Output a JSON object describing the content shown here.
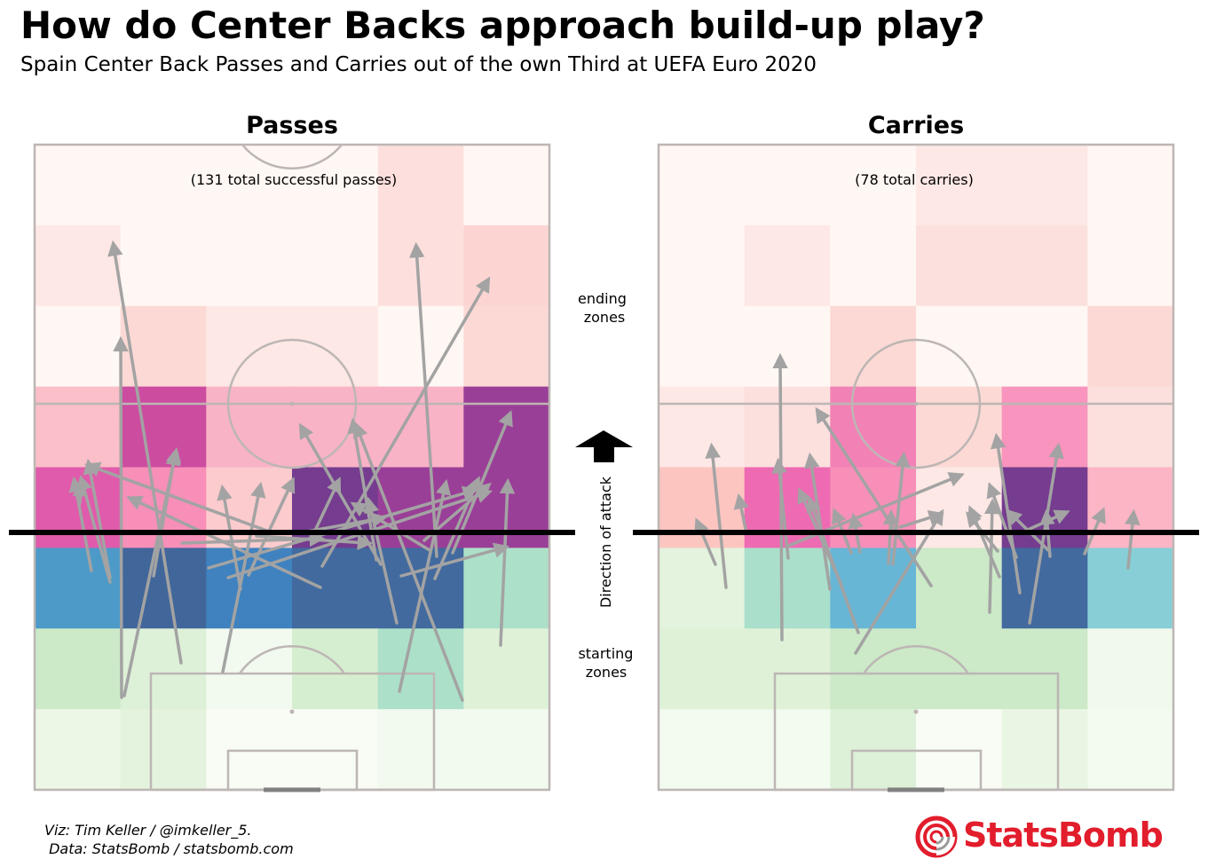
{
  "title": "How do Center Backs approach build-up play?",
  "subtitle": "Spain Center Back Passes and Carries out of the own Third at UEFA Euro 2020",
  "credits": {
    "line1": "Viz: Tim Keller / @imkeller_5.",
    "line2": " Data: StatsBomb / statsbomb.com"
  },
  "brand": "StatsBomb",
  "middle": {
    "ending_label": "ending\nzones",
    "starting_label": "starting\nzones",
    "direction_label": "Direction of attack"
  },
  "colors": {
    "arrow": "#a3a3a3",
    "pitch_line": "#bdb6b4",
    "brand": "#e21d2c"
  },
  "chart_data": [
    {
      "type": "heatmap",
      "title": "Passes",
      "annotation": "(131 total successful passes)",
      "grid": {
        "cols": 6,
        "rows": 8,
        "note": "rows ordered from attacking end (top) to own goal (bottom)"
      },
      "ending_zone_colors": [
        [
          "#fff7f3",
          "#fff7f3",
          "#fff7f3",
          "#fff7f3",
          "#fde0dd",
          "#fff7f3"
        ],
        [
          "#fde8e5",
          "#fff7f3",
          "#fff7f3",
          "#fff7f3",
          "#fde0dd",
          "#fcd5d2"
        ],
        [
          "#fff7f3",
          "#fcd9d5",
          "#fde8e5",
          "#fde8e5",
          "#fff7f3",
          "#fcd9d5"
        ],
        [
          "#fabfc8",
          "#cc4ca0",
          "#f9b3c6",
          "#f9b3c6",
          "#f9b3c6",
          "#9a3f97"
        ],
        [
          "#e05bab",
          "#f78fb8",
          "#fbcbce",
          "#753c8f",
          "#9a3f97",
          "#9a3f97"
        ]
      ],
      "starting_zone_colors": [
        [
          "#4d9ac8",
          "#41669a",
          "#3f82bf",
          "#426a9e",
          "#426a9e",
          "#ade0c9"
        ],
        [
          "#cce9c8",
          "#ddf0d8",
          "#f2f9ef",
          "#d6eed0",
          "#ade0c9",
          "#dff2d8"
        ],
        [
          "#ecf7e6",
          "#e3f3dd",
          "#f8fcf4",
          "#f8fcf4",
          "#f2f9ee",
          "#f2f9ee"
        ]
      ],
      "arrows": [
        [
          137,
          786,
          136,
          385
        ],
        [
          124,
          656,
          92,
          541
        ],
        [
          103,
          643,
          84,
          543
        ],
        [
          90,
          567,
          91,
          548
        ],
        [
          124,
          651,
          100,
          523
        ],
        [
          204,
          747,
          128,
          277
        ],
        [
          173,
          649,
          197,
          513
        ],
        [
          140,
          784,
          198,
          510
        ],
        [
          271,
          664,
          251,
          552
        ],
        [
          251,
          757,
          293,
          549
        ],
        [
          306,
          600,
          101,
          525
        ],
        [
          280,
          648,
          329,
          543
        ],
        [
          361,
          662,
          148,
          562
        ],
        [
          289,
          604,
          414,
          612
        ],
        [
          429,
          636,
          340,
          482
        ],
        [
          353,
          602,
          381,
          543
        ],
        [
          452,
          649,
          568,
          617
        ],
        [
          484,
          620,
          400,
          569
        ],
        [
          510,
          623,
          574,
          468
        ],
        [
          478,
          609,
          549,
          548
        ],
        [
          424,
          631,
          398,
          477
        ],
        [
          492,
          627,
          469,
          279
        ],
        [
          450,
          779,
          502,
          546
        ],
        [
          564,
          727,
          572,
          545
        ],
        [
          521,
          789,
          402,
          481
        ],
        [
          363,
          638,
          549,
          317
        ],
        [
          447,
          702,
          416,
          566
        ],
        [
          235,
          640,
          533,
          553
        ],
        [
          257,
          651,
          549,
          555
        ],
        [
          205,
          612,
          360,
          607
        ],
        [
          340,
          600,
          430,
          584
        ],
        [
          490,
          652,
          538,
          542
        ]
      ]
    },
    {
      "type": "heatmap",
      "title": "Carries",
      "annotation": "(78 total carries)",
      "grid": {
        "cols": 6,
        "rows": 8,
        "note": "rows ordered from attacking end (top) to own goal (bottom)"
      },
      "ending_zone_colors": [
        [
          "#fff7f3",
          "#fff7f3",
          "#fff7f3",
          "#fde8e5",
          "#fde8e5",
          "#fff7f3"
        ],
        [
          "#fff7f3",
          "#fde8e5",
          "#fff7f3",
          "#fbe0de",
          "#fbe0de",
          "#fff7f3"
        ],
        [
          "#fff7f3",
          "#fff7f3",
          "#fcd9d5",
          "#fff7f3",
          "#fff7f3",
          "#fcd9d5"
        ],
        [
          "#fde8e5",
          "#fbe0de",
          "#f282b6",
          "#fcd9d5",
          "#f894bd",
          "#fbe0de"
        ],
        [
          "#fcc5c0",
          "#ee6ab2",
          "#f78fb8",
          "#fde8e5",
          "#753c8f",
          "#fbb5c5"
        ]
      ],
      "starting_zone_colors": [
        [
          "#e3f3dd",
          "#aadfcb",
          "#68b6d6",
          "#cce9c8",
          "#426a9e",
          "#88ced6"
        ],
        [
          "#dff2d8",
          "#dff2d8",
          "#cce9c8",
          "#cce9c8",
          "#cce9c8",
          "#f0f9ec"
        ],
        [
          "#f3faef",
          "#f3faef",
          "#ddf0d8",
          "#f8fcf4",
          "#eaf6e4",
          "#f3faef"
        ]
      ],
      "arrows": [
        [
          818,
          662,
          802,
          505
        ],
        [
          806,
          636,
          786,
          589
        ],
        [
          881,
          721,
          879,
          404
        ],
        [
          841,
          601,
          833,
          562
        ],
        [
          888,
          629,
          877,
          522
        ],
        [
          935,
          664,
          913,
          516
        ],
        [
          967,
          713,
          913,
          565
        ],
        [
          948,
          659,
          902,
          555
        ],
        [
          959,
          623,
          941,
          578
        ],
        [
          1006,
          636,
          1018,
          515
        ],
        [
          1001,
          635,
          1004,
          580
        ],
        [
          969,
          622,
          962,
          584
        ],
        [
          1049,
          660,
          922,
          464
        ],
        [
          964,
          736,
          1060,
          579
        ],
        [
          1115,
          690,
          1118,
          568
        ],
        [
          1126,
          650,
          1094,
          575
        ],
        [
          1149,
          668,
          1123,
          494
        ],
        [
          1160,
          702,
          1192,
          505
        ],
        [
          1183,
          627,
          1179,
          580
        ],
        [
          1271,
          640,
          1277,
          580
        ],
        [
          1222,
          624,
          1242,
          577
        ],
        [
          1124,
          621,
          1092,
          581
        ],
        [
          1145,
          628,
          1116,
          549
        ],
        [
          886,
          616,
          1081,
          536
        ],
        [
          1014,
          594,
          1058,
          580
        ],
        [
          1181,
          620,
          1138,
          578
        ],
        [
          1158,
          597,
          1200,
          578
        ]
      ]
    }
  ]
}
